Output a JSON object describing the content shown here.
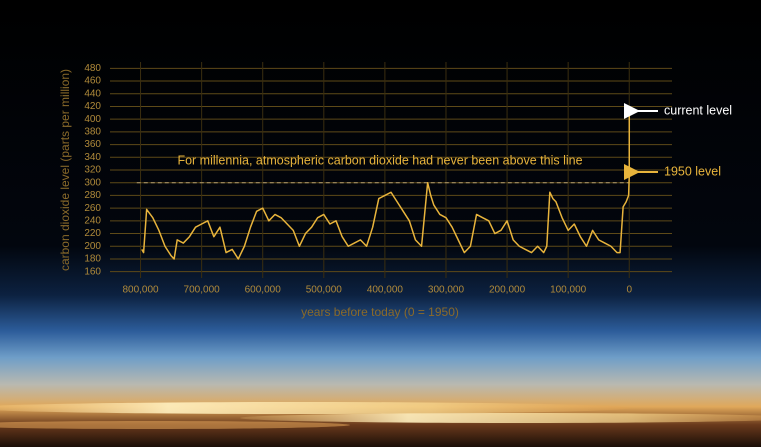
{
  "chart_data": {
    "type": "line",
    "xlabel": "years before today (0 = 1950)",
    "ylabel": "carbon dioxide level (parts per million)",
    "annotations": {
      "threshold_text": "For millennia, atmospheric carbon dioxide had never been above this line",
      "current": "current level",
      "level_1950": "1950 level"
    },
    "threshold": 300,
    "xlim": [
      850000,
      -70000
    ],
    "ylim": [
      150,
      490
    ],
    "xticks": [
      {
        "value": 800000,
        "label": "800,000"
      },
      {
        "value": 700000,
        "label": "700,000"
      },
      {
        "value": 600000,
        "label": "600,000"
      },
      {
        "value": 500000,
        "label": "500,000"
      },
      {
        "value": 400000,
        "label": "400,000"
      },
      {
        "value": 300000,
        "label": "300,000"
      },
      {
        "value": 200000,
        "label": "200,000"
      },
      {
        "value": 100000,
        "label": "100,000"
      },
      0
    ],
    "yticks": [
      160,
      180,
      200,
      220,
      240,
      260,
      280,
      300,
      320,
      340,
      360,
      380,
      400,
      420,
      440,
      460,
      480
    ],
    "grid": true,
    "x": [
      798000,
      795000,
      790000,
      780000,
      770000,
      760000,
      750000,
      745000,
      740000,
      730000,
      720000,
      710000,
      700000,
      690000,
      680000,
      670000,
      660000,
      650000,
      640000,
      630000,
      620000,
      610000,
      600000,
      590000,
      580000,
      570000,
      560000,
      550000,
      540000,
      530000,
      520000,
      510000,
      500000,
      490000,
      480000,
      470000,
      460000,
      450000,
      440000,
      430000,
      420000,
      410000,
      400000,
      390000,
      380000,
      370000,
      360000,
      350000,
      340000,
      330000,
      325000,
      320000,
      310000,
      300000,
      290000,
      280000,
      270000,
      260000,
      250000,
      240000,
      230000,
      220000,
      210000,
      200000,
      190000,
      180000,
      170000,
      160000,
      150000,
      140000,
      135000,
      130000,
      125000,
      120000,
      110000,
      100000,
      90000,
      80000,
      70000,
      60000,
      50000,
      40000,
      30000,
      20000,
      15000,
      10000,
      5000,
      1000,
      0,
      -70
    ],
    "series": [
      {
        "color": "#e8b43c",
        "values": [
          195,
          190,
          258,
          245,
          225,
          200,
          185,
          180,
          210,
          205,
          215,
          230,
          235,
          240,
          215,
          230,
          190,
          195,
          180,
          200,
          230,
          255,
          260,
          240,
          250,
          245,
          235,
          225,
          200,
          220,
          230,
          245,
          250,
          235,
          240,
          215,
          200,
          205,
          210,
          200,
          230,
          275,
          280,
          285,
          270,
          255,
          240,
          210,
          200,
          300,
          280,
          265,
          250,
          245,
          230,
          210,
          190,
          200,
          250,
          245,
          240,
          220,
          225,
          240,
          210,
          200,
          195,
          190,
          200,
          190,
          200,
          285,
          275,
          270,
          245,
          225,
          235,
          215,
          200,
          225,
          210,
          205,
          200,
          190,
          190,
          262,
          270,
          280,
          310,
          412
        ]
      }
    ]
  }
}
